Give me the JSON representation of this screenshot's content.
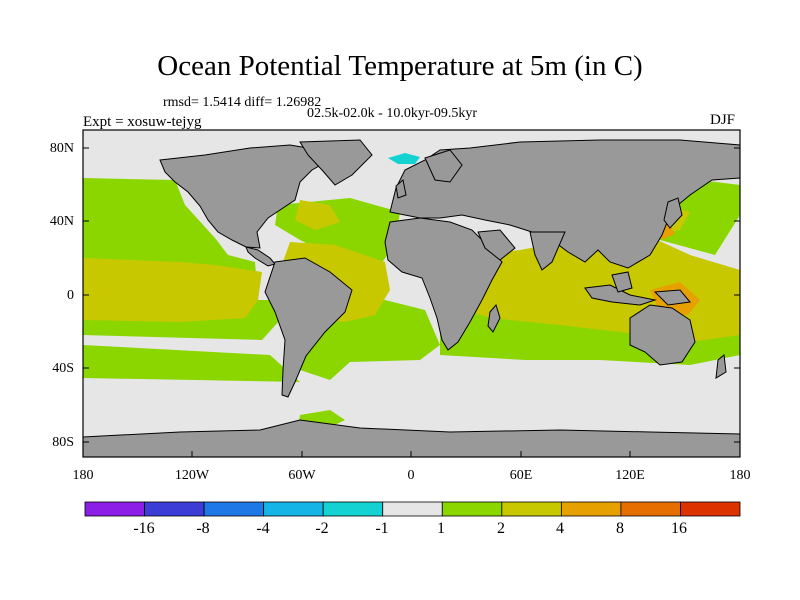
{
  "title": "Ocean Potential Temperature at 5m (in C)",
  "stats": "rmsd= 1.5414 diff= 1.26982",
  "subtitle": "02.5k-02.0k - 10.0kyr-09.5kyr",
  "expt": "Expt = xosuw-tejyg",
  "season": "DJF",
  "y_axis": {
    "labels": [
      "80N",
      "40N",
      "0",
      "40S",
      "80S"
    ]
  },
  "x_axis": {
    "labels": [
      "180",
      "120W",
      "60W",
      "0",
      "60E",
      "120E",
      "180"
    ]
  },
  "colorbar": {
    "labels": [
      "-16",
      "-8",
      "-4",
      "-2",
      "-1",
      "1",
      "2",
      "4",
      "8",
      "16"
    ],
    "colors": [
      "#8c1ee6",
      "#3c3cd7",
      "#1e78e6",
      "#14b4e6",
      "#14d2d2",
      "#e6e6e6",
      "#8cd600",
      "#c8c800",
      "#e6a000",
      "#e66e00",
      "#dc3200"
    ]
  },
  "palette": {
    "land": "#999999",
    "no_change": "#e6e6e6",
    "warm_1_2": "#8cd600",
    "warm_2_4": "#c8c800",
    "warm_4_8": "#e6a000",
    "cool_1_2": "#14d2d2",
    "cool_2_4": "#14b4e6"
  }
}
